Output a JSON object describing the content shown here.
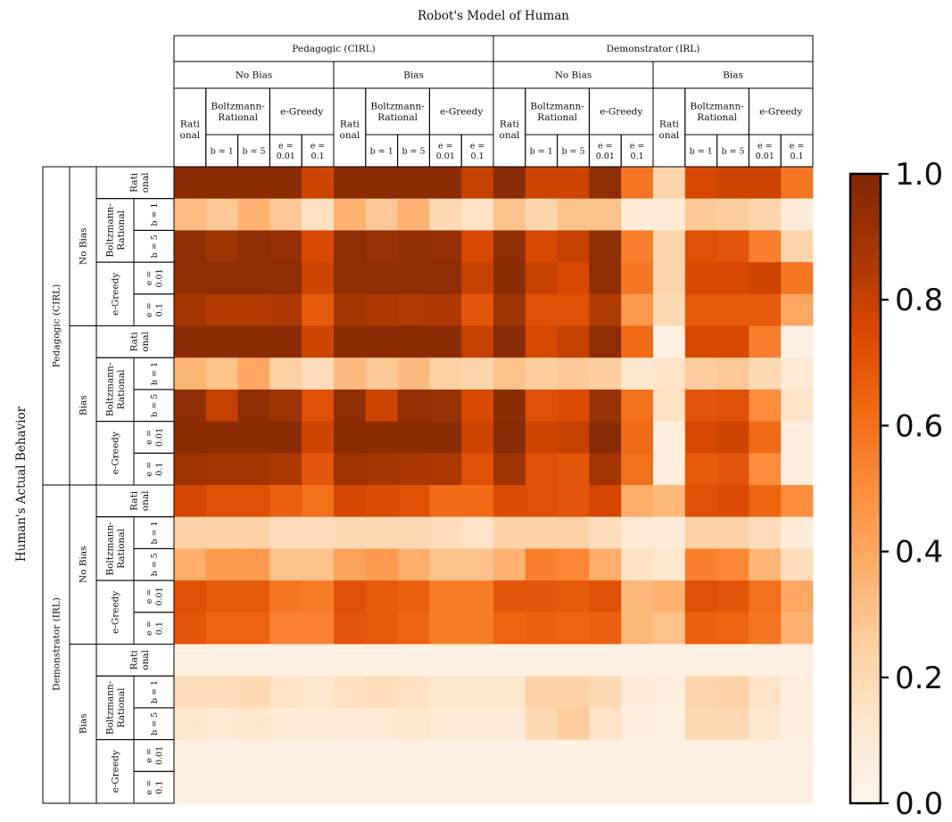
{
  "chart_data": {
    "type": "heatmap",
    "title": "Robot's Model of Human",
    "ylabel": "Human's Actual Behavior",
    "colormap": "Oranges",
    "vmin": 0.0,
    "vmax": 1.0,
    "colorbar_ticks": [
      "0.0",
      "0.2",
      "0.4",
      "0.6",
      "0.8",
      "1.0"
    ],
    "col_header": {
      "level1": [
        "Pedagogic (CIRL)",
        "Demonstrator (IRL)"
      ],
      "level2": [
        "No Bias",
        "Bias"
      ],
      "level3": [
        "Rati\nonal",
        "Boltzmann-\nRational",
        "e-Greedy"
      ],
      "level4": [
        "b = 1",
        "b = 5",
        "e =\n0.01",
        "e =\n0.1"
      ]
    },
    "row_header": {
      "level1": [
        "Pedagogic (CIRL)",
        "Demonstrator (IRL)"
      ],
      "level2": [
        "No Bias",
        "Bias"
      ],
      "level3": [
        "Rati\nonal",
        "Boltzmann-\nRational",
        "e-Greedy"
      ],
      "level4": [
        "b = 1",
        "b = 5",
        "e =\n0.01",
        "e =\n0.1"
      ]
    },
    "values": [
      [
        0.96,
        0.96,
        0.96,
        0.96,
        0.78,
        0.96,
        0.96,
        0.96,
        0.96,
        0.8,
        0.97,
        0.78,
        0.78,
        0.95,
        0.58,
        0.22,
        0.75,
        0.78,
        0.78,
        0.58
      ],
      [
        0.32,
        0.28,
        0.36,
        0.28,
        0.16,
        0.36,
        0.28,
        0.36,
        0.2,
        0.14,
        0.3,
        0.22,
        0.3,
        0.3,
        0.08,
        0.08,
        0.28,
        0.26,
        0.22,
        0.08
      ],
      [
        0.95,
        0.9,
        0.95,
        0.93,
        0.75,
        0.95,
        0.92,
        0.94,
        0.93,
        0.75,
        0.95,
        0.75,
        0.8,
        0.95,
        0.55,
        0.22,
        0.72,
        0.7,
        0.55,
        0.22
      ],
      [
        0.95,
        0.95,
        0.95,
        0.95,
        0.78,
        0.95,
        0.95,
        0.95,
        0.95,
        0.8,
        0.96,
        0.8,
        0.75,
        0.95,
        0.58,
        0.22,
        0.75,
        0.75,
        0.78,
        0.58
      ],
      [
        0.88,
        0.84,
        0.84,
        0.86,
        0.68,
        0.88,
        0.86,
        0.85,
        0.86,
        0.7,
        0.9,
        0.72,
        0.72,
        0.85,
        0.45,
        0.2,
        0.68,
        0.68,
        0.68,
        0.4
      ],
      [
        0.96,
        0.96,
        0.96,
        0.96,
        0.78,
        0.96,
        0.96,
        0.96,
        0.96,
        0.8,
        0.97,
        0.75,
        0.8,
        0.95,
        0.62,
        0.04,
        0.75,
        0.75,
        0.55,
        0.04
      ],
      [
        0.35,
        0.3,
        0.4,
        0.25,
        0.18,
        0.33,
        0.28,
        0.33,
        0.25,
        0.22,
        0.3,
        0.26,
        0.28,
        0.26,
        0.12,
        0.14,
        0.26,
        0.28,
        0.2,
        0.1
      ],
      [
        0.95,
        0.8,
        0.95,
        0.9,
        0.72,
        0.95,
        0.78,
        0.93,
        0.92,
        0.75,
        0.96,
        0.72,
        0.74,
        0.92,
        0.6,
        0.16,
        0.7,
        0.72,
        0.5,
        0.14
      ],
      [
        0.96,
        0.96,
        0.96,
        0.96,
        0.78,
        0.96,
        0.96,
        0.96,
        0.96,
        0.78,
        0.97,
        0.78,
        0.8,
        0.97,
        0.62,
        0.06,
        0.75,
        0.78,
        0.62,
        0.06
      ],
      [
        0.9,
        0.88,
        0.88,
        0.86,
        0.7,
        0.9,
        0.88,
        0.87,
        0.86,
        0.72,
        0.9,
        0.72,
        0.7,
        0.88,
        0.6,
        0.06,
        0.68,
        0.7,
        0.5,
        0.06
      ],
      [
        0.76,
        0.72,
        0.72,
        0.66,
        0.6,
        0.76,
        0.74,
        0.72,
        0.62,
        0.62,
        0.74,
        0.72,
        0.7,
        0.76,
        0.38,
        0.34,
        0.72,
        0.74,
        0.64,
        0.5
      ],
      [
        0.24,
        0.24,
        0.24,
        0.18,
        0.18,
        0.2,
        0.2,
        0.2,
        0.18,
        0.14,
        0.24,
        0.24,
        0.24,
        0.18,
        0.1,
        0.08,
        0.24,
        0.24,
        0.18,
        0.08
      ],
      [
        0.38,
        0.45,
        0.45,
        0.3,
        0.3,
        0.42,
        0.45,
        0.38,
        0.3,
        0.3,
        0.36,
        0.55,
        0.52,
        0.38,
        0.16,
        0.12,
        0.55,
        0.52,
        0.35,
        0.18
      ],
      [
        0.72,
        0.68,
        0.68,
        0.58,
        0.56,
        0.72,
        0.68,
        0.66,
        0.56,
        0.56,
        0.7,
        0.7,
        0.68,
        0.72,
        0.34,
        0.36,
        0.72,
        0.7,
        0.6,
        0.4
      ],
      [
        0.7,
        0.64,
        0.64,
        0.54,
        0.54,
        0.7,
        0.68,
        0.64,
        0.56,
        0.56,
        0.64,
        0.66,
        0.64,
        0.66,
        0.34,
        0.3,
        0.66,
        0.64,
        0.58,
        0.36
      ],
      [
        0.04,
        0.04,
        0.04,
        0.04,
        0.04,
        0.04,
        0.04,
        0.04,
        0.04,
        0.04,
        0.04,
        0.04,
        0.04,
        0.04,
        0.04,
        0.04,
        0.04,
        0.04,
        0.04,
        0.04
      ],
      [
        0.18,
        0.18,
        0.2,
        0.14,
        0.12,
        0.16,
        0.18,
        0.16,
        0.12,
        0.12,
        0.12,
        0.24,
        0.24,
        0.2,
        0.08,
        0.06,
        0.22,
        0.24,
        0.14,
        0.06
      ],
      [
        0.12,
        0.1,
        0.12,
        0.08,
        0.08,
        0.1,
        0.1,
        0.12,
        0.08,
        0.08,
        0.08,
        0.2,
        0.26,
        0.14,
        0.06,
        0.04,
        0.2,
        0.2,
        0.12,
        0.06
      ],
      [
        0.04,
        0.04,
        0.04,
        0.04,
        0.04,
        0.04,
        0.04,
        0.04,
        0.04,
        0.04,
        0.04,
        0.04,
        0.04,
        0.04,
        0.04,
        0.04,
        0.04,
        0.04,
        0.04,
        0.04
      ],
      [
        0.05,
        0.05,
        0.05,
        0.05,
        0.05,
        0.05,
        0.05,
        0.05,
        0.05,
        0.05,
        0.05,
        0.05,
        0.05,
        0.05,
        0.05,
        0.05,
        0.05,
        0.05,
        0.05,
        0.05
      ]
    ]
  }
}
